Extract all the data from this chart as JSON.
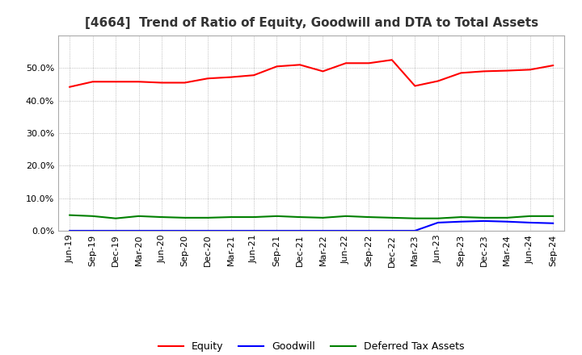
{
  "title": "[4664]  Trend of Ratio of Equity, Goodwill and DTA to Total Assets",
  "x_labels": [
    "Jun-19",
    "Sep-19",
    "Dec-19",
    "Mar-20",
    "Jun-20",
    "Sep-20",
    "Dec-20",
    "Mar-21",
    "Jun-21",
    "Sep-21",
    "Dec-21",
    "Mar-22",
    "Jun-22",
    "Sep-22",
    "Dec-22",
    "Mar-23",
    "Jun-23",
    "Sep-23",
    "Dec-23",
    "Mar-24",
    "Jun-24",
    "Sep-24"
  ],
  "equity": [
    44.2,
    45.8,
    45.8,
    45.8,
    45.5,
    45.5,
    46.8,
    47.2,
    47.8,
    50.5,
    51.0,
    49.0,
    51.5,
    51.5,
    52.5,
    44.5,
    46.0,
    48.5,
    49.0,
    49.2,
    49.5,
    50.8
  ],
  "goodwill": [
    0.0,
    0.0,
    0.0,
    0.0,
    0.0,
    0.0,
    0.0,
    0.0,
    0.0,
    0.0,
    0.0,
    0.0,
    0.0,
    0.0,
    0.0,
    0.0,
    2.5,
    2.8,
    3.0,
    2.8,
    2.5,
    2.3
  ],
  "dta": [
    4.8,
    4.5,
    3.8,
    4.5,
    4.2,
    4.0,
    4.0,
    4.2,
    4.2,
    4.5,
    4.2,
    4.0,
    4.5,
    4.2,
    4.0,
    3.8,
    3.8,
    4.2,
    4.0,
    4.0,
    4.5,
    4.5
  ],
  "equity_color": "#ff0000",
  "goodwill_color": "#0000ff",
  "dta_color": "#008000",
  "ylim": [
    0,
    60
  ],
  "yticks": [
    0.0,
    10.0,
    20.0,
    30.0,
    40.0,
    50.0
  ],
  "background_color": "#ffffff",
  "plot_bg": "#ffffff",
  "grid_color": "#999999",
  "title_fontsize": 11,
  "legend_labels": [
    "Equity",
    "Goodwill",
    "Deferred Tax Assets"
  ]
}
